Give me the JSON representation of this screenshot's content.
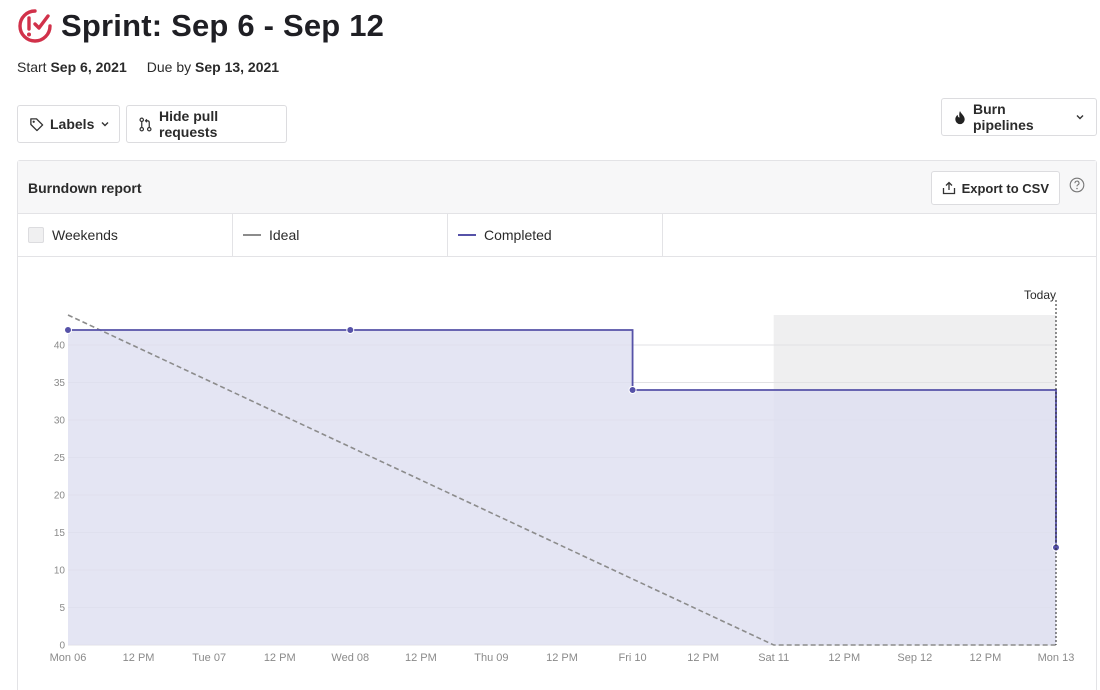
{
  "page": {
    "title": "Sprint: Sep 6 - Sep 12",
    "start_label": "Start",
    "start_date": "Sep 6, 2021",
    "due_label": "Due by",
    "due_date": "Sep 13, 2021"
  },
  "toolbar": {
    "labels_button": "Labels",
    "hide_prs_button": "Hide pull requests",
    "burn_pipelines_button": "Burn pipelines"
  },
  "panel": {
    "title": "Burndown report",
    "export_button": "Export to CSV"
  },
  "legend": {
    "weekends": "Weekends",
    "ideal": "Ideal",
    "completed": "Completed"
  },
  "colors": {
    "accent_red": "#d1314a",
    "completed": "#5652a8",
    "completed_fill": "#dedff0",
    "ideal": "#8c8c8c",
    "weekend": "#efeff0"
  },
  "chart_data": {
    "type": "area",
    "today_label": "Today",
    "x_ticks": [
      "Mon 06",
      "12 PM",
      "Tue 07",
      "12 PM",
      "Wed 08",
      "12 PM",
      "Thu 09",
      "12 PM",
      "Fri 10",
      "12 PM",
      "Sat 11",
      "12 PM",
      "Sep 12",
      "12 PM",
      "Mon 13"
    ],
    "y_ticks": [
      0,
      5,
      10,
      15,
      20,
      25,
      30,
      35,
      40
    ],
    "ylim": [
      0,
      44
    ],
    "x_range_days": [
      0,
      7
    ],
    "weekend_range_days": [
      5,
      7
    ],
    "today_day": 7,
    "ideal": [
      {
        "day": 0,
        "value": 44
      },
      {
        "day": 5,
        "value": 0
      },
      {
        "day": 7,
        "value": 0
      }
    ],
    "series": [
      {
        "name": "Completed",
        "step_points": [
          {
            "day": 0,
            "value": 42
          },
          {
            "day": 4,
            "value": 42
          },
          {
            "day": 4,
            "value": 34
          },
          {
            "day": 7,
            "value": 34
          },
          {
            "day": 7,
            "value": 13
          }
        ],
        "markers": [
          {
            "day": 0,
            "value": 42
          },
          {
            "day": 2,
            "value": 42
          },
          {
            "day": 4,
            "value": 34
          },
          {
            "day": 7,
            "value": 13
          }
        ]
      }
    ]
  }
}
